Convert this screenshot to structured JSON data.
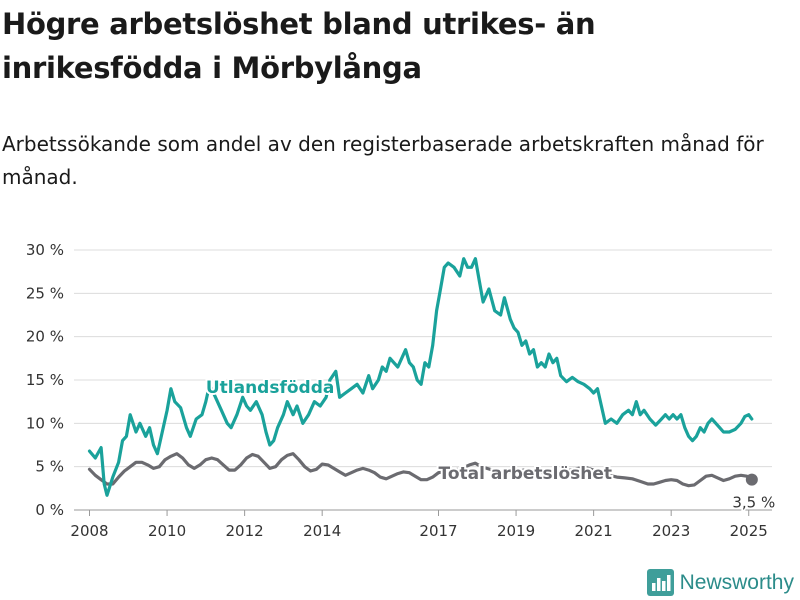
{
  "title": "Högre arbetslöshet bland utrikes- än inrikesfödda i Mörbylånga",
  "subtitle": "Arbetssökande som andel av den registerbaserade arbetskraften månad för månad.",
  "brand": {
    "name": "Newsworthy",
    "icon": "bar-chart-logo-icon",
    "color": "#3f9e9a"
  },
  "colors": {
    "foreign": "#1aa29b",
    "total": "#6b6b70"
  },
  "chart_data": {
    "type": "line",
    "ylim": [
      0,
      30
    ],
    "yticks": [
      0,
      5,
      10,
      15,
      20,
      25,
      30
    ],
    "ytick_labels": [
      "0 %",
      "5 %",
      "10 %",
      "15 %",
      "20 %",
      "25 %",
      "30 %"
    ],
    "xlim": [
      2007.6,
      2025.6
    ],
    "xticks": [
      2008,
      2010,
      2012,
      2014,
      2017,
      2019,
      2021,
      2023,
      2025
    ],
    "xtick_labels": [
      "2008",
      "2010",
      "2012",
      "2014",
      "2017",
      "2019",
      "2021",
      "2023",
      "2025"
    ],
    "grid": true,
    "series": [
      {
        "name": "Utlandsfödda",
        "points": [
          [
            2008.0,
            6.8
          ],
          [
            2008.15,
            6.0
          ],
          [
            2008.3,
            7.2
          ],
          [
            2008.38,
            3.0
          ],
          [
            2008.45,
            1.7
          ],
          [
            2008.6,
            3.8
          ],
          [
            2008.75,
            5.5
          ],
          [
            2008.85,
            8.0
          ],
          [
            2008.95,
            8.5
          ],
          [
            2009.05,
            11.0
          ],
          [
            2009.2,
            9.0
          ],
          [
            2009.3,
            10.0
          ],
          [
            2009.45,
            8.5
          ],
          [
            2009.55,
            9.5
          ],
          [
            2009.65,
            7.5
          ],
          [
            2009.75,
            6.5
          ],
          [
            2009.85,
            8.5
          ],
          [
            2010.0,
            11.5
          ],
          [
            2010.1,
            14.0
          ],
          [
            2010.2,
            12.5
          ],
          [
            2010.35,
            11.8
          ],
          [
            2010.5,
            9.5
          ],
          [
            2010.6,
            8.5
          ],
          [
            2010.75,
            10.5
          ],
          [
            2010.9,
            11.0
          ],
          [
            2011.0,
            12.5
          ],
          [
            2011.1,
            14.5
          ],
          [
            2011.25,
            13.0
          ],
          [
            2011.4,
            11.5
          ],
          [
            2011.55,
            10.0
          ],
          [
            2011.65,
            9.5
          ],
          [
            2011.8,
            11.0
          ],
          [
            2011.95,
            13.0
          ],
          [
            2012.05,
            12.0
          ],
          [
            2012.15,
            11.5
          ],
          [
            2012.3,
            12.5
          ],
          [
            2012.45,
            11.0
          ],
          [
            2012.55,
            9.0
          ],
          [
            2012.65,
            7.5
          ],
          [
            2012.75,
            8.0
          ],
          [
            2012.85,
            9.5
          ],
          [
            2013.0,
            11.0
          ],
          [
            2013.1,
            12.5
          ],
          [
            2013.25,
            11.0
          ],
          [
            2013.35,
            12.0
          ],
          [
            2013.5,
            10.0
          ],
          [
            2013.65,
            11.0
          ],
          [
            2013.8,
            12.5
          ],
          [
            2013.95,
            12.0
          ],
          [
            2014.1,
            13.0
          ],
          [
            2014.2,
            15.0
          ],
          [
            2014.35,
            16.0
          ],
          [
            2014.45,
            13.0
          ],
          [
            2014.6,
            13.5
          ],
          [
            2014.75,
            14.0
          ],
          [
            2014.9,
            14.5
          ],
          [
            2015.05,
            13.5
          ],
          [
            2015.2,
            15.5
          ],
          [
            2015.3,
            14.0
          ],
          [
            2015.45,
            15.0
          ],
          [
            2015.55,
            16.5
          ],
          [
            2015.65,
            16.0
          ],
          [
            2015.75,
            17.5
          ],
          [
            2015.85,
            17.0
          ],
          [
            2015.95,
            16.5
          ],
          [
            2016.05,
            17.5
          ],
          [
            2016.15,
            18.5
          ],
          [
            2016.25,
            17.0
          ],
          [
            2016.35,
            16.5
          ],
          [
            2016.45,
            15.0
          ],
          [
            2016.55,
            14.5
          ],
          [
            2016.65,
            17.0
          ],
          [
            2016.75,
            16.5
          ],
          [
            2016.85,
            19.0
          ],
          [
            2016.95,
            23.0
          ],
          [
            2017.05,
            25.5
          ],
          [
            2017.15,
            28.0
          ],
          [
            2017.25,
            28.5
          ],
          [
            2017.4,
            28.0
          ],
          [
            2017.55,
            27.0
          ],
          [
            2017.65,
            29.0
          ],
          [
            2017.75,
            28.0
          ],
          [
            2017.85,
            28.0
          ],
          [
            2017.95,
            29.0
          ],
          [
            2018.05,
            26.5
          ],
          [
            2018.15,
            24.0
          ],
          [
            2018.3,
            25.5
          ],
          [
            2018.45,
            23.0
          ],
          [
            2018.6,
            22.5
          ],
          [
            2018.7,
            24.5
          ],
          [
            2018.85,
            22.0
          ],
          [
            2018.95,
            21.0
          ],
          [
            2019.05,
            20.5
          ],
          [
            2019.15,
            19.0
          ],
          [
            2019.25,
            19.5
          ],
          [
            2019.35,
            18.0
          ],
          [
            2019.45,
            18.5
          ],
          [
            2019.55,
            16.5
          ],
          [
            2019.65,
            17.0
          ],
          [
            2019.75,
            16.5
          ],
          [
            2019.85,
            18.0
          ],
          [
            2019.95,
            17.0
          ],
          [
            2020.05,
            17.5
          ],
          [
            2020.15,
            15.5
          ],
          [
            2020.3,
            14.8
          ],
          [
            2020.45,
            15.3
          ],
          [
            2020.6,
            14.8
          ],
          [
            2020.75,
            14.5
          ],
          [
            2020.9,
            14.0
          ],
          [
            2021.0,
            13.5
          ],
          [
            2021.1,
            14.0
          ],
          [
            2021.2,
            12.0
          ],
          [
            2021.3,
            10.0
          ],
          [
            2021.45,
            10.5
          ],
          [
            2021.6,
            10.0
          ],
          [
            2021.75,
            11.0
          ],
          [
            2021.9,
            11.5
          ],
          [
            2022.0,
            11.0
          ],
          [
            2022.1,
            12.5
          ],
          [
            2022.2,
            11.0
          ],
          [
            2022.3,
            11.5
          ],
          [
            2022.45,
            10.5
          ],
          [
            2022.6,
            9.8
          ],
          [
            2022.75,
            10.5
          ],
          [
            2022.85,
            11.0
          ],
          [
            2022.95,
            10.5
          ],
          [
            2023.05,
            11.0
          ],
          [
            2023.15,
            10.5
          ],
          [
            2023.25,
            11.0
          ],
          [
            2023.35,
            9.5
          ],
          [
            2023.45,
            8.5
          ],
          [
            2023.55,
            8.0
          ],
          [
            2023.65,
            8.5
          ],
          [
            2023.75,
            9.5
          ],
          [
            2023.85,
            9.0
          ],
          [
            2023.95,
            10.0
          ],
          [
            2024.05,
            10.5
          ],
          [
            2024.15,
            10.0
          ],
          [
            2024.25,
            9.5
          ],
          [
            2024.35,
            9.0
          ],
          [
            2024.5,
            9.0
          ],
          [
            2024.65,
            9.3
          ],
          [
            2024.8,
            10.0
          ],
          [
            2024.9,
            10.8
          ],
          [
            2025.0,
            11.0
          ],
          [
            2025.08,
            10.5
          ]
        ]
      },
      {
        "name": "Total arbetslöshet",
        "points": [
          [
            2008.0,
            4.7
          ],
          [
            2008.15,
            4.0
          ],
          [
            2008.3,
            3.5
          ],
          [
            2008.45,
            3.0
          ],
          [
            2008.6,
            3.0
          ],
          [
            2008.75,
            3.8
          ],
          [
            2008.9,
            4.5
          ],
          [
            2009.05,
            5.0
          ],
          [
            2009.2,
            5.5
          ],
          [
            2009.35,
            5.5
          ],
          [
            2009.5,
            5.2
          ],
          [
            2009.65,
            4.8
          ],
          [
            2009.8,
            5.0
          ],
          [
            2009.95,
            5.8
          ],
          [
            2010.1,
            6.2
          ],
          [
            2010.25,
            6.5
          ],
          [
            2010.4,
            6.0
          ],
          [
            2010.55,
            5.2
          ],
          [
            2010.7,
            4.8
          ],
          [
            2010.85,
            5.2
          ],
          [
            2011.0,
            5.8
          ],
          [
            2011.15,
            6.0
          ],
          [
            2011.3,
            5.8
          ],
          [
            2011.45,
            5.2
          ],
          [
            2011.6,
            4.6
          ],
          [
            2011.75,
            4.6
          ],
          [
            2011.9,
            5.2
          ],
          [
            2012.05,
            6.0
          ],
          [
            2012.2,
            6.4
          ],
          [
            2012.35,
            6.2
          ],
          [
            2012.5,
            5.5
          ],
          [
            2012.65,
            4.8
          ],
          [
            2012.8,
            5.0
          ],
          [
            2012.95,
            5.8
          ],
          [
            2013.1,
            6.3
          ],
          [
            2013.25,
            6.5
          ],
          [
            2013.4,
            5.8
          ],
          [
            2013.55,
            5.0
          ],
          [
            2013.7,
            4.5
          ],
          [
            2013.85,
            4.7
          ],
          [
            2014.0,
            5.3
          ],
          [
            2014.15,
            5.2
          ],
          [
            2014.3,
            4.8
          ],
          [
            2014.45,
            4.4
          ],
          [
            2014.6,
            4.0
          ],
          [
            2014.75,
            4.3
          ],
          [
            2014.9,
            4.6
          ],
          [
            2015.05,
            4.8
          ],
          [
            2015.2,
            4.6
          ],
          [
            2015.35,
            4.3
          ],
          [
            2015.5,
            3.8
          ],
          [
            2015.65,
            3.6
          ],
          [
            2015.8,
            3.9
          ],
          [
            2015.95,
            4.2
          ],
          [
            2016.1,
            4.4
          ],
          [
            2016.25,
            4.3
          ],
          [
            2016.4,
            3.9
          ],
          [
            2016.55,
            3.5
          ],
          [
            2016.7,
            3.5
          ],
          [
            2016.85,
            3.8
          ],
          [
            2017.0,
            4.3
          ],
          [
            2017.2,
            4.5
          ],
          [
            2017.4,
            4.6
          ],
          [
            2017.6,
            4.8
          ],
          [
            2017.8,
            5.2
          ],
          [
            2017.95,
            5.4
          ],
          [
            2018.1,
            5.0
          ],
          [
            2018.25,
            4.8
          ],
          [
            2018.4,
            4.6
          ],
          [
            2018.55,
            4.4
          ],
          [
            2018.75,
            4.3
          ],
          [
            2018.95,
            4.4
          ],
          [
            2019.2,
            4.6
          ],
          [
            2019.4,
            4.5
          ],
          [
            2019.6,
            4.3
          ],
          [
            2019.8,
            4.4
          ],
          [
            2020.0,
            4.5
          ],
          [
            2020.2,
            4.4
          ],
          [
            2020.4,
            4.6
          ],
          [
            2020.6,
            4.8
          ],
          [
            2020.8,
            4.9
          ],
          [
            2021.0,
            4.6
          ],
          [
            2021.2,
            4.3
          ],
          [
            2021.4,
            4.0
          ],
          [
            2021.6,
            3.8
          ],
          [
            2021.8,
            3.7
          ],
          [
            2022.0,
            3.6
          ],
          [
            2022.2,
            3.3
          ],
          [
            2022.4,
            3.0
          ],
          [
            2022.55,
            3.0
          ],
          [
            2022.7,
            3.2
          ],
          [
            2022.85,
            3.4
          ],
          [
            2023.0,
            3.5
          ],
          [
            2023.15,
            3.4
          ],
          [
            2023.3,
            3.0
          ],
          [
            2023.45,
            2.8
          ],
          [
            2023.6,
            2.9
          ],
          [
            2023.75,
            3.4
          ],
          [
            2023.9,
            3.9
          ],
          [
            2024.05,
            4.0
          ],
          [
            2024.2,
            3.7
          ],
          [
            2024.35,
            3.4
          ],
          [
            2024.5,
            3.6
          ],
          [
            2024.65,
            3.9
          ],
          [
            2024.8,
            4.0
          ],
          [
            2024.95,
            3.9
          ],
          [
            2025.08,
            3.5
          ]
        ]
      }
    ],
    "annotations": [
      {
        "text": "Utlandsfödda",
        "series": 0,
        "x": 2011.0,
        "y": 13.5
      },
      {
        "text": "Total arbetslöshet",
        "series": 1,
        "x": 2017.0,
        "y": 3.6
      },
      {
        "text": "3,5 %",
        "series": 1,
        "x": 2025.08,
        "y": 3.5
      }
    ]
  }
}
